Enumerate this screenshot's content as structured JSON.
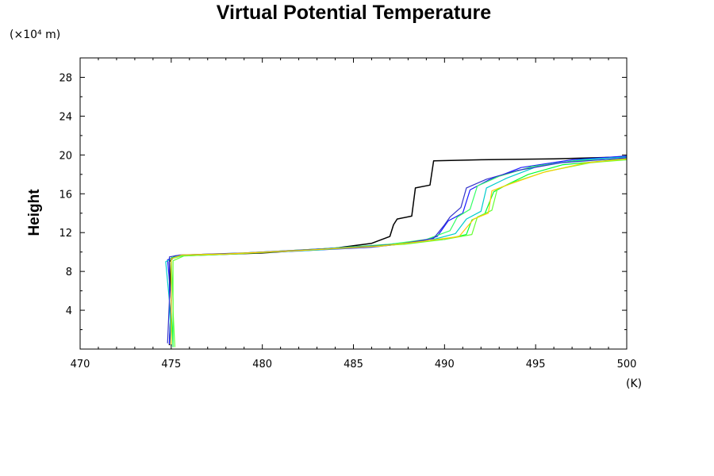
{
  "chart_data": {
    "type": "line",
    "title": "Virtual Potential Temperature",
    "xlabel": "",
    "x_unit": "(K)",
    "ylabel": "Height",
    "y_unit": "(×10⁴ m)",
    "xlim": [
      470,
      500
    ],
    "ylim": [
      0,
      30
    ],
    "x_ticks": [
      470,
      475,
      480,
      485,
      490,
      495,
      500
    ],
    "y_ticks": [
      4,
      8,
      12,
      16,
      20,
      24,
      28
    ],
    "grid": false,
    "colors": {
      "reference": "#000000",
      "ensemble": [
        "#00ff33",
        "#1a1aff",
        "#00cccc",
        "#33ff66",
        "#3333cc",
        "#ffcc00",
        "#66ff33"
      ]
    },
    "series": [
      {
        "color": "#000000",
        "points": [
          [
            474.9,
            0.4
          ],
          [
            475.0,
            5
          ],
          [
            474.9,
            9.0
          ],
          [
            475.2,
            9.6
          ],
          [
            477,
            9.7
          ],
          [
            480,
            9.9
          ],
          [
            484,
            10.4
          ],
          [
            486,
            10.9
          ],
          [
            487,
            11.6
          ],
          [
            487.2,
            12.8
          ],
          [
            487.4,
            13.4
          ],
          [
            488.2,
            13.7
          ],
          [
            488.4,
            16.6
          ],
          [
            489.2,
            16.9
          ],
          [
            489.4,
            19.4
          ],
          [
            492,
            19.5
          ],
          [
            496,
            19.6
          ],
          [
            500,
            19.8
          ]
        ]
      },
      {
        "color": "#00ff33",
        "points": [
          [
            475.1,
            0.2
          ],
          [
            475.0,
            4
          ],
          [
            475.0,
            9.4
          ],
          [
            475.6,
            9.7
          ],
          [
            478,
            9.8
          ],
          [
            482,
            10.2
          ],
          [
            486,
            10.6
          ],
          [
            488,
            11.0
          ],
          [
            490,
            11.3
          ],
          [
            491.2,
            11.8
          ],
          [
            491.5,
            13.3
          ],
          [
            492.2,
            13.9
          ],
          [
            492.7,
            16.2
          ],
          [
            493.5,
            17.0
          ],
          [
            494.6,
            18.0
          ],
          [
            496.5,
            19.0
          ],
          [
            500,
            19.6
          ]
        ]
      },
      {
        "color": "#1a1aff",
        "points": [
          [
            474.9,
            0.5
          ],
          [
            475.0,
            5
          ],
          [
            474.8,
            9.2
          ],
          [
            475.4,
            9.6
          ],
          [
            478,
            9.8
          ],
          [
            482,
            10.1
          ],
          [
            486,
            10.5
          ],
          [
            488.5,
            11.0
          ],
          [
            489.6,
            11.6
          ],
          [
            490.2,
            13.2
          ],
          [
            491.0,
            14.0
          ],
          [
            491.4,
            16.4
          ],
          [
            492.4,
            17.4
          ],
          [
            494.2,
            18.7
          ],
          [
            497,
            19.5
          ],
          [
            500,
            19.9
          ]
        ]
      },
      {
        "color": "#00cccc",
        "points": [
          [
            475.0,
            0.3
          ],
          [
            474.9,
            5
          ],
          [
            474.7,
            9.0
          ],
          [
            475.3,
            9.6
          ],
          [
            478,
            9.8
          ],
          [
            483,
            10.2
          ],
          [
            487,
            10.7
          ],
          [
            489.2,
            11.2
          ],
          [
            490.6,
            11.9
          ],
          [
            491.2,
            13.4
          ],
          [
            492.0,
            14.2
          ],
          [
            492.3,
            16.6
          ],
          [
            493.4,
            17.6
          ],
          [
            495.2,
            18.9
          ],
          [
            497.5,
            19.5
          ],
          [
            500,
            19.8
          ]
        ]
      },
      {
        "color": "#33ff66",
        "points": [
          [
            475.1,
            0.3
          ],
          [
            475.1,
            5
          ],
          [
            475.0,
            9.3
          ],
          [
            475.8,
            9.7
          ],
          [
            479,
            9.9
          ],
          [
            483,
            10.3
          ],
          [
            487,
            10.8
          ],
          [
            489,
            11.3
          ],
          [
            490.3,
            12.2
          ],
          [
            490.7,
            13.6
          ],
          [
            491.4,
            14.4
          ],
          [
            491.8,
            16.8
          ],
          [
            493.0,
            17.8
          ],
          [
            494.8,
            18.8
          ],
          [
            497.2,
            19.4
          ],
          [
            500,
            19.6
          ]
        ]
      },
      {
        "color": "#3333cc",
        "points": [
          [
            474.8,
            0.6
          ],
          [
            474.9,
            5
          ],
          [
            474.9,
            9.5
          ],
          [
            475.5,
            9.7
          ],
          [
            479,
            9.9
          ],
          [
            484,
            10.4
          ],
          [
            487.5,
            10.8
          ],
          [
            489.4,
            11.4
          ],
          [
            490.0,
            12.8
          ],
          [
            490.3,
            13.6
          ],
          [
            490.9,
            14.6
          ],
          [
            491.2,
            16.6
          ],
          [
            492.3,
            17.5
          ],
          [
            494.0,
            18.4
          ],
          [
            496.4,
            19.2
          ],
          [
            500,
            19.7
          ]
        ]
      },
      {
        "color": "#66ff33",
        "points": [
          [
            475.2,
            0.2
          ],
          [
            475.1,
            4
          ],
          [
            475.1,
            9.1
          ],
          [
            475.7,
            9.6
          ],
          [
            478.5,
            9.8
          ],
          [
            483.5,
            10.3
          ],
          [
            487.8,
            10.8
          ],
          [
            490.0,
            11.3
          ],
          [
            491.5,
            11.8
          ],
          [
            491.8,
            13.6
          ],
          [
            492.6,
            14.3
          ],
          [
            492.9,
            16.5
          ],
          [
            493.8,
            17.2
          ],
          [
            495.6,
            18.3
          ],
          [
            498,
            19.2
          ],
          [
            500,
            19.5
          ]
        ]
      },
      {
        "color": "#ffcc00",
        "points": [
          [
            475.0,
            0.4
          ],
          [
            475.0,
            5
          ],
          [
            475.0,
            9.3
          ],
          [
            475.6,
            9.7
          ],
          [
            478,
            9.8
          ],
          [
            482.5,
            10.2
          ],
          [
            486.5,
            10.6
          ],
          [
            488.8,
            11.1
          ],
          [
            490.8,
            11.6
          ],
          [
            491.6,
            13.4
          ],
          [
            492.4,
            14.0
          ],
          [
            492.6,
            16.3
          ],
          [
            493.6,
            17.0
          ],
          [
            495.4,
            18.2
          ],
          [
            497.8,
            19.2
          ],
          [
            500,
            19.6
          ]
        ]
      }
    ]
  }
}
